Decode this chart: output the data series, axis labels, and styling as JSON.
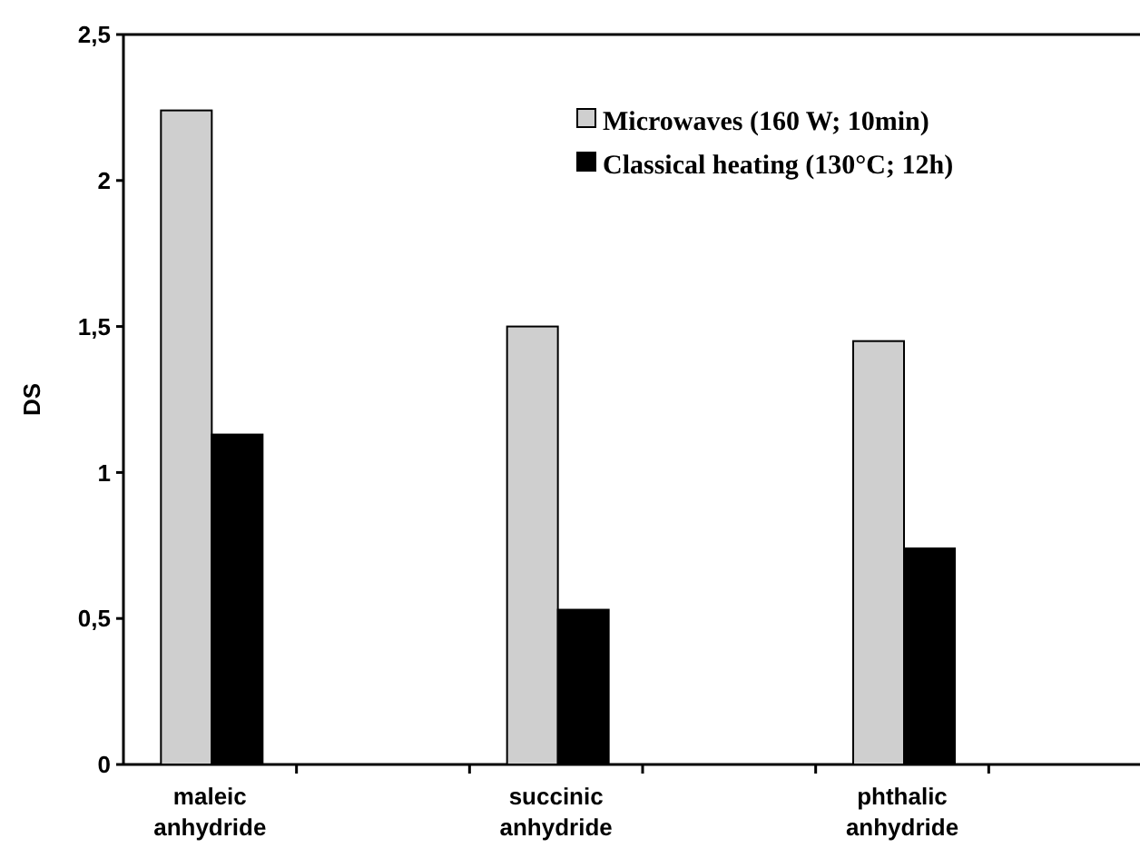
{
  "chart_data": {
    "type": "bar",
    "ylabel": "DS",
    "categories": [
      "maleic anhydride",
      null,
      "succinic anhydride",
      null,
      "phthalic anhydride",
      null
    ],
    "series": [
      {
        "name": "Microwaves (160 W; 10min)",
        "color": "#cfcfcf",
        "values": [
          2.24,
          null,
          1.5,
          null,
          1.45,
          null
        ]
      },
      {
        "name": "Classical heating (130°C; 12h)",
        "color": "#000000",
        "values": [
          1.13,
          null,
          0.53,
          null,
          0.74,
          null
        ]
      }
    ],
    "ylim": [
      0,
      2.5
    ],
    "yticks": [
      0,
      {
        "value": 0.5,
        "label": "0,5"
      },
      1,
      {
        "value": 1.5,
        "label": "1,5"
      },
      2,
      {
        "value": 2.5,
        "label": "2,5"
      }
    ],
    "grid": false,
    "legend": "top right"
  }
}
